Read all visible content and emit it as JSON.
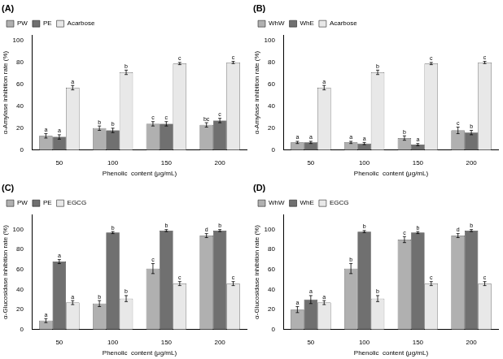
{
  "chart_data": [
    {
      "type": "bar",
      "title": "(A)",
      "xlabel": "Phenolic  content (μg/mL)",
      "ylabel": "α-Amylase inhibition rate (%)",
      "categories": [
        "50",
        "100",
        "150",
        "200"
      ],
      "series": [
        {
          "name": "PW",
          "color": "#b0b0b0",
          "values": [
            13,
            20,
            24,
            23
          ],
          "errors": [
            2,
            2,
            2,
            2
          ],
          "letters": [
            "a",
            "b",
            "c",
            "bc"
          ]
        },
        {
          "name": "PE",
          "color": "#707070",
          "values": [
            12,
            18,
            24,
            27
          ],
          "errors": [
            2,
            2,
            2,
            2
          ],
          "letters": [
            "a",
            "b",
            "c",
            "c"
          ]
        },
        {
          "name": "Acarbose",
          "color": "#e8e8e8",
          "values": [
            57,
            71,
            79,
            80
          ],
          "errors": [
            2,
            2,
            1,
            1
          ],
          "letters": [
            "a",
            "b",
            "c",
            "c"
          ]
        }
      ],
      "ylim": [
        0,
        105
      ],
      "yticks": [
        0,
        20,
        40,
        60,
        80,
        100
      ],
      "grid": false,
      "legend": "upper left"
    },
    {
      "type": "bar",
      "title": "(B)",
      "xlabel": "Phenolic  content (μg/mL)",
      "ylabel": "α-Amylase inhibition rate (%)",
      "categories": [
        "50",
        "100",
        "150",
        "200"
      ],
      "series": [
        {
          "name": "WhW",
          "color": "#b0b0b0",
          "values": [
            7,
            7,
            11,
            18
          ],
          "errors": [
            1,
            1,
            2,
            3
          ],
          "letters": [
            "a",
            "a",
            "b",
            "c"
          ]
        },
        {
          "name": "WhE",
          "color": "#707070",
          "values": [
            7,
            6,
            5,
            16
          ],
          "errors": [
            1,
            1,
            1,
            2
          ],
          "letters": [
            "a",
            "a",
            "a",
            "b"
          ]
        },
        {
          "name": "Acarbose",
          "color": "#e8e8e8",
          "values": [
            57,
            71,
            79,
            80
          ],
          "errors": [
            2,
            2,
            1,
            1
          ],
          "letters": [
            "a",
            "b",
            "c",
            "c"
          ]
        }
      ],
      "ylim": [
        0,
        105
      ],
      "yticks": [
        0,
        20,
        40,
        60,
        80,
        100
      ],
      "grid": false,
      "legend": "upper left"
    },
    {
      "type": "bar",
      "title": "(C)",
      "xlabel": "Phenolic  content (μg/mL)",
      "ylabel": "α-Glucosidase inhibition rate (%)",
      "categories": [
        "50",
        "100",
        "150",
        "200"
      ],
      "series": [
        {
          "name": "PW",
          "color": "#b0b0b0",
          "values": [
            9,
            26,
            61,
            94
          ],
          "errors": [
            2,
            3,
            5,
            2
          ],
          "letters": [
            "a",
            "b",
            "c",
            "d"
          ]
        },
        {
          "name": "PE",
          "color": "#707070",
          "values": [
            68,
            97,
            99,
            99
          ],
          "errors": [
            2,
            1,
            1,
            1
          ],
          "letters": [
            "a",
            "b",
            "b",
            "b"
          ]
        },
        {
          "name": "EGCG",
          "color": "#e8e8e8",
          "values": [
            27,
            31,
            46,
            46
          ],
          "errors": [
            2,
            3,
            2,
            2
          ],
          "letters": [
            "a",
            "b",
            "c",
            "c"
          ]
        }
      ],
      "ylim": [
        0,
        115
      ],
      "yticks": [
        0,
        20,
        40,
        60,
        80,
        100
      ],
      "grid": false,
      "legend": "upper left"
    },
    {
      "type": "bar",
      "title": "(D)",
      "xlabel": "Phenolic  content (μg/mL)",
      "ylabel": "α-Glucosidase inhibition rate (%)",
      "categories": [
        "50",
        "100",
        "150",
        "200"
      ],
      "series": [
        {
          "name": "WhW",
          "color": "#b0b0b0",
          "values": [
            20,
            61,
            90,
            94
          ],
          "errors": [
            3,
            5,
            3,
            2
          ],
          "letters": [
            "a",
            "b",
            "c",
            "d"
          ]
        },
        {
          "name": "WhE",
          "color": "#707070",
          "values": [
            30,
            98,
            97,
            99
          ],
          "errors": [
            4,
            1,
            1,
            1
          ],
          "letters": [
            "a",
            "b",
            "b",
            "b"
          ]
        },
        {
          "name": "EGCG",
          "color": "#e8e8e8",
          "values": [
            27,
            31,
            46,
            46
          ],
          "errors": [
            2,
            3,
            2,
            2
          ],
          "letters": [
            "a",
            "b",
            "c",
            "c"
          ]
        }
      ],
      "ylim": [
        0,
        115
      ],
      "yticks": [
        0,
        20,
        40,
        60,
        80,
        100
      ],
      "grid": false,
      "legend": "upper left"
    }
  ]
}
